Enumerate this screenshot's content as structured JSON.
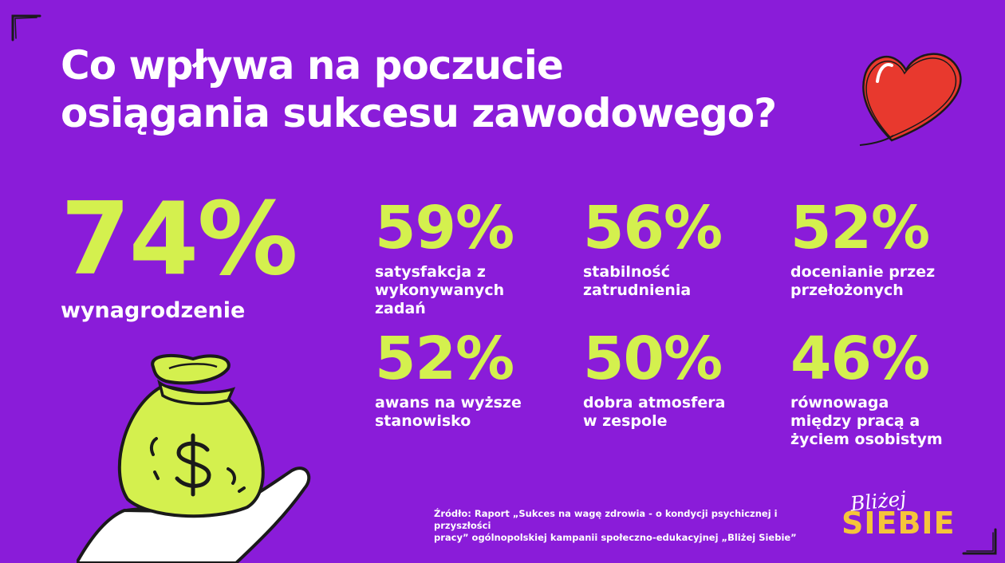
{
  "title": {
    "line1": "Co wpływa na poczucie",
    "line2": "osiągania sukcesu zawodowego?"
  },
  "main_stat": {
    "value": "74%",
    "label": "wynagrodzenie"
  },
  "stats": [
    {
      "value": "59%",
      "label_lines": [
        "satysfakcja z",
        "wykonywanych",
        "zadań"
      ]
    },
    {
      "value": "56%",
      "label_lines": [
        "stabilność",
        "zatrudnienia"
      ]
    },
    {
      "value": "52%",
      "label_lines": [
        "docenianie przez",
        "przełożonych"
      ]
    },
    {
      "value": "52%",
      "label_lines": [
        "awans na wyższe",
        "stanowisko"
      ]
    },
    {
      "value": "50%",
      "label_lines": [
        "dobra atmosfera",
        "w zespole"
      ]
    },
    {
      "value": "46%",
      "label_lines": [
        "równowaga",
        "między pracą a",
        "życiem osobistym"
      ]
    }
  ],
  "source": {
    "line1": "Źródło: Raport „Sukces na wagę zdrowia - o kondycji psychicznej i przyszłości",
    "line2": "pracy” ogólnopolskiej kampanii społeczno-edukacyjnej „Bliżej Siebie”"
  },
  "brand": {
    "script": "Bliżej",
    "main": "SIEBIE"
  },
  "colors": {
    "background": "#8a1cd9",
    "accent": "#d4f04e",
    "text": "#ffffff",
    "heart": "#e8392e",
    "brand": "#f5c43a"
  },
  "icons": [
    "heart-icon",
    "money-bag-icon",
    "dollar-sign-icon",
    "hand-icon"
  ]
}
